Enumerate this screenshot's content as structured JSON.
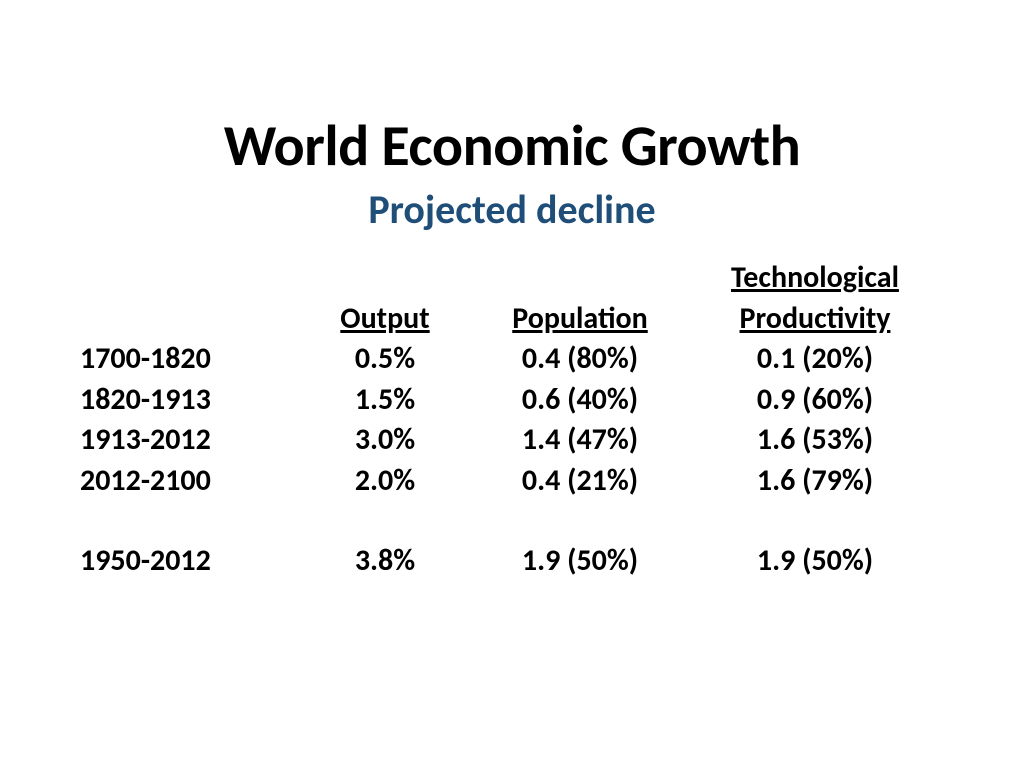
{
  "title": "World Economic Growth",
  "subtitle": "Projected decline",
  "colors": {
    "title": "#000000",
    "subtitle": "#1f4e79",
    "text": "#000000",
    "background": "#ffffff"
  },
  "fonts": {
    "title_size": 58,
    "subtitle_size": 40,
    "body_size": 30,
    "family": "Calibri"
  },
  "table": {
    "header_top": {
      "tech": "Technological"
    },
    "header_main": {
      "output": "Output",
      "population": "Population",
      "productivity": "Productivity"
    },
    "rows": [
      {
        "period": "1700-1820",
        "output": "0.5%",
        "population": "0.4 (80%)",
        "productivity": "0.1 (20%)"
      },
      {
        "period": "1820-1913",
        "output": "1.5%",
        "population": "0.6 (40%)",
        "productivity": "0.9 (60%)"
      },
      {
        "period": "1913-2012",
        "output": "3.0%",
        "population": "1.4 (47%)",
        "productivity": "1.6 (53%)"
      },
      {
        "period": "2012-2100",
        "output": "2.0%",
        "population": "0.4 (21%)",
        "productivity": "1.6 (79%)"
      }
    ],
    "footer_row": {
      "period": "1950-2012",
      "output": "3.8%",
      "population": "1.9 (50%)",
      "productivity": "1.9 (50%)"
    }
  }
}
